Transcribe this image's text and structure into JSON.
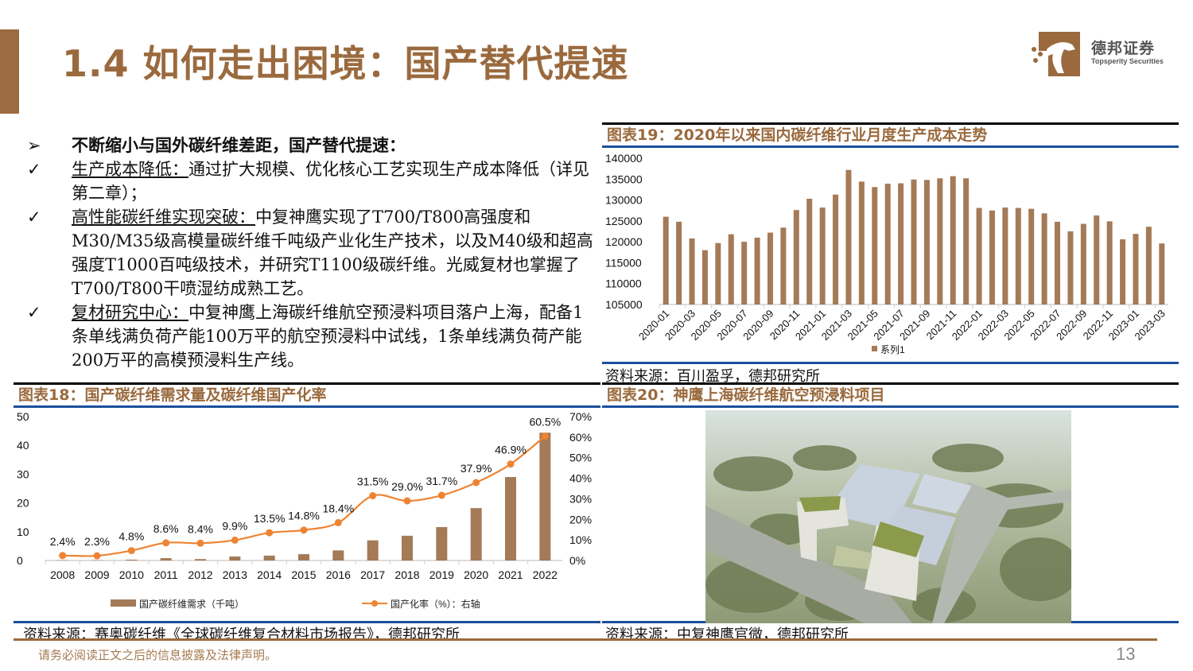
{
  "header": {
    "title": "1.4 如何走出困境：国产替代提速",
    "logo": {
      "cn": "德邦证券",
      "en": "Topsperity Securities"
    }
  },
  "bullets": {
    "headline": {
      "marker": "➢",
      "text": "不断缩小与国外碳纤维差距，国产替代提速："
    },
    "items": [
      {
        "marker": "✓",
        "label": "生产成本降低：",
        "text": "通过扩大规模、优化核心工艺实现生产成本降低（详见第二章）；"
      },
      {
        "marker": "✓",
        "label": "高性能碳纤维实现突破：",
        "text": "中复神鹰实现了T700/T800高强度和M30/M35级高模量碳纤维千吨级产业化生产技术，以及M40级和超高强度T1000百吨级技术，并研究T1100级碳纤维。光威复材也掌握了T700/T800干喷湿纺成熟工艺。"
      },
      {
        "marker": "✓",
        "label": "复材研究中心：",
        "text": "中复神鹰上海碳纤维航空预浸料项目落户上海，配备1条单线满负荷产能100万平的航空预浸料中试线，1条单线满负荷产能200万平的高模预浸料生产线。"
      }
    ]
  },
  "figure19": {
    "title": "图表19：2020年以来国内碳纤维行业月度生产成本走势",
    "source": "资料来源：百川盈孚，德邦研究所",
    "legend": "系列1"
  },
  "figure18": {
    "title": "图表18：国产碳纤维需求量及碳纤维国产化率",
    "source": "资料来源：赛奥碳纤维《全球碳纤维复合材料市场报告》，德邦研究所",
    "legend_bar": "国产碳纤维需求（千吨）",
    "legend_line": "国产化率（%）：右轴"
  },
  "figure20": {
    "title": "图表20：神鹰上海碳纤维航空预浸料项目",
    "source": "资料来源：中复神鹰官微，德邦研究所",
    "image_alt": "aerial-rendering-of-factory-campus"
  },
  "footer": {
    "disclaimer": "请务必阅读正文之后的信息披露及法律声明。",
    "page_number": "13"
  },
  "colors": {
    "brand_brown": "#9a6a3e",
    "bar_brown": "#a47a57",
    "line_orange": "#ee8433",
    "rule_blue": "#1a4f9c"
  },
  "chart_data": [
    {
      "id": "figure19",
      "type": "bar",
      "title": "图表19：2020年以来国内碳纤维行业月度生产成本走势",
      "xlabel": "",
      "ylabel": "",
      "ylim": [
        105000,
        140000
      ],
      "yticks": [
        105000,
        110000,
        115000,
        120000,
        125000,
        130000,
        135000,
        140000
      ],
      "xtick_labels": [
        "2020-01",
        "2020-03",
        "2020-05",
        "2020-07",
        "2020-09",
        "2020-11",
        "2021-01",
        "2021-03",
        "2021-05",
        "2021-07",
        "2021-09",
        "2021-11",
        "2022-01",
        "2022-03",
        "2022-05",
        "2022-07",
        "2022-09",
        "2022-11",
        "2023-01",
        "2023-03"
      ],
      "categories": [
        "2020-01",
        "2020-02",
        "2020-03",
        "2020-04",
        "2020-05",
        "2020-06",
        "2020-07",
        "2020-08",
        "2020-09",
        "2020-10",
        "2020-11",
        "2020-12",
        "2021-01",
        "2021-02",
        "2021-03",
        "2021-04",
        "2021-05",
        "2021-06",
        "2021-07",
        "2021-08",
        "2021-09",
        "2021-10",
        "2021-11",
        "2021-12",
        "2022-01",
        "2022-02",
        "2022-03",
        "2022-04",
        "2022-05",
        "2022-06",
        "2022-07",
        "2022-08",
        "2022-09",
        "2022-10",
        "2022-11",
        "2022-12",
        "2023-01",
        "2023-02",
        "2023-03"
      ],
      "series": [
        {
          "name": "系列1",
          "values": [
            126000,
            124800,
            120800,
            118000,
            119700,
            121800,
            120000,
            121000,
            122200,
            123400,
            127600,
            130300,
            128200,
            131300,
            137200,
            134400,
            133100,
            133900,
            134000,
            134900,
            134800,
            135200,
            135700,
            135200,
            128100,
            127500,
            128200,
            128100,
            127900,
            126800,
            124800,
            122500,
            124300,
            126300,
            124900,
            120600,
            121900,
            123600,
            119600
          ]
        }
      ],
      "legend_position": "bottom",
      "grid": false
    },
    {
      "id": "figure18",
      "type": "bar+line",
      "title": "图表18：国产碳纤维需求量及碳纤维国产化率",
      "categories": [
        "2008",
        "2009",
        "2010",
        "2011",
        "2012",
        "2013",
        "2014",
        "2015",
        "2016",
        "2017",
        "2018",
        "2019",
        "2020",
        "2021",
        "2022"
      ],
      "series": [
        {
          "name": "国产碳纤维需求（千吨）",
          "type": "bar",
          "axis": "left",
          "values": [
            0.1,
            0.1,
            0.3,
            0.8,
            0.5,
            1.4,
            1.7,
            2.2,
            3.5,
            7.0,
            8.6,
            11.6,
            18.2,
            29.0,
            44.4
          ]
        },
        {
          "name": "国产化率（%）：右轴",
          "type": "line",
          "axis": "right",
          "values": [
            2.4,
            2.3,
            4.8,
            8.6,
            8.4,
            9.9,
            13.5,
            14.8,
            18.4,
            31.5,
            29.0,
            31.7,
            37.9,
            46.9,
            60.5
          ],
          "data_labels": [
            "2.4%",
            "2.3%",
            "4.8%",
            "8.6%",
            "8.4%",
            "9.9%",
            "13.5%",
            "14.8%",
            "18.4%",
            "31.5%",
            "29.0%",
            "31.7%",
            "37.9%",
            "46.9%",
            "60.5%"
          ]
        }
      ],
      "ylim_left": [
        0,
        50
      ],
      "yticks_left": [
        0,
        10,
        20,
        30,
        40,
        50
      ],
      "ylim_right": [
        0,
        70
      ],
      "yticks_right": [
        "0%",
        "10%",
        "20%",
        "30%",
        "40%",
        "50%",
        "60%",
        "70%"
      ],
      "legend_position": "bottom",
      "grid": false
    }
  ]
}
